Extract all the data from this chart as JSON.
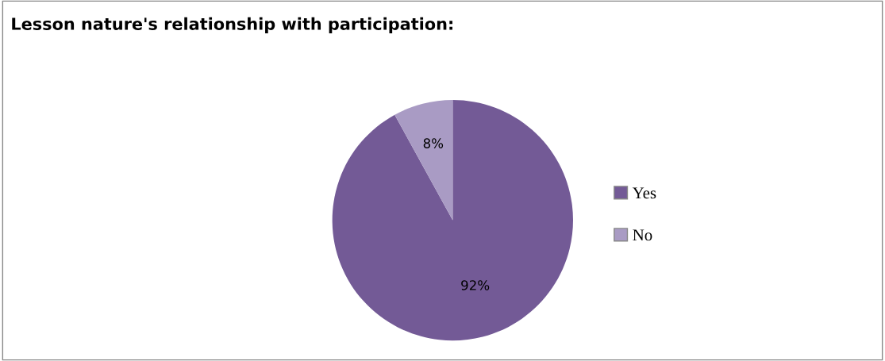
{
  "chart_data": {
    "type": "pie",
    "title": "Lesson nature's relationship with participation:",
    "categories": [
      "Yes",
      "No"
    ],
    "values": [
      92,
      8
    ],
    "colors": [
      "#735a96",
      "#a99bc4"
    ],
    "value_labels": [
      "92%",
      "8%"
    ],
    "legend": "right"
  }
}
